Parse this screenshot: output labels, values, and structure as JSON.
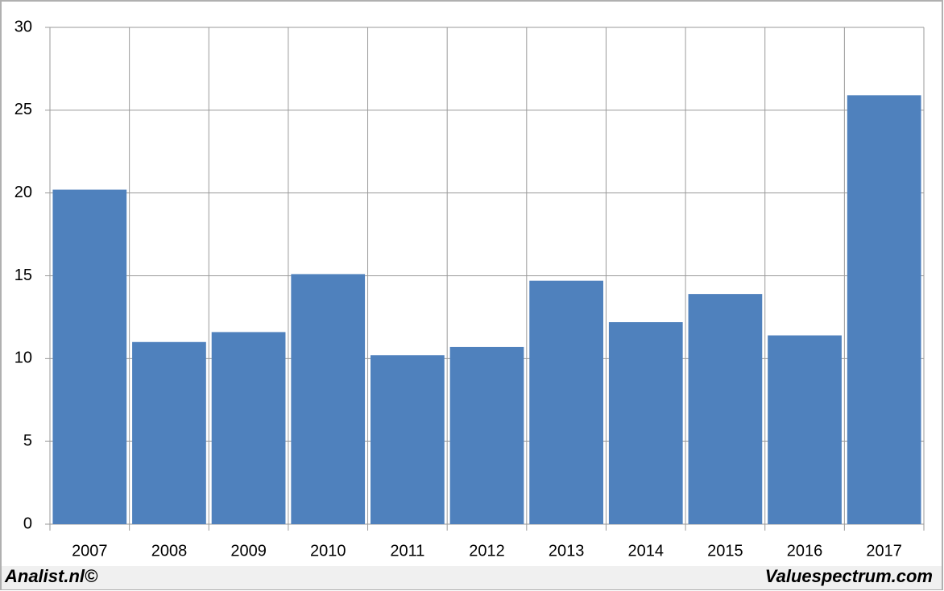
{
  "chart_data": {
    "type": "bar",
    "categories": [
      "2007",
      "2008",
      "2009",
      "2010",
      "2011",
      "2012",
      "2013",
      "2014",
      "2015",
      "2016",
      "2017"
    ],
    "values": [
      20.2,
      11.0,
      11.6,
      15.1,
      10.2,
      10.7,
      14.7,
      12.2,
      13.9,
      11.4,
      25.9
    ],
    "color": "#4f81bd",
    "ylim": [
      0,
      30
    ],
    "yticks": [
      0,
      5,
      10,
      15,
      20,
      25,
      30
    ],
    "grid": true,
    "footer_left": "Analist.nl©",
    "footer_right": "Valuespectrum.com"
  }
}
